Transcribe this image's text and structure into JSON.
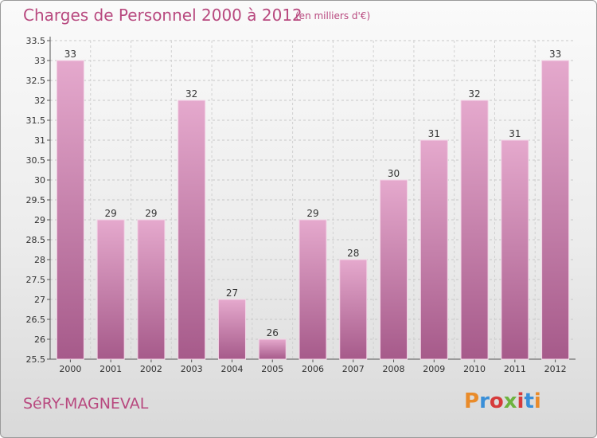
{
  "header": {
    "title": "Charges de Personnel 2000 à 2012",
    "subtitle": "(en milliers d'€)"
  },
  "footer": {
    "commune": "SéRY-MAGNEVAL",
    "logo_text": "Proxiti",
    "logo_colors": [
      "#e98b2a",
      "#3a8fd8",
      "#d63b3b",
      "#6db33f",
      "#d63b3b",
      "#3a8fd8",
      "#e98b2a"
    ]
  },
  "colors": {
    "bar_top": "#e5a9cd",
    "bar_bottom": "#a65a8a",
    "accent": "#b8497f"
  },
  "chart_data": {
    "type": "bar",
    "categories": [
      "2000",
      "2001",
      "2002",
      "2003",
      "2004",
      "2005",
      "2006",
      "2007",
      "2008",
      "2009",
      "2010",
      "2011",
      "2012"
    ],
    "values": [
      33,
      29,
      29,
      32,
      27,
      26,
      29,
      28,
      30,
      31,
      32,
      31,
      33
    ],
    "title": "Charges de Personnel 2000 à 2012",
    "ylim": [
      25.5,
      33.5
    ],
    "yticks": [
      "25.5",
      "26",
      "26.5",
      "27",
      "27.5",
      "28",
      "28.5",
      "29",
      "29.5",
      "30",
      "30.5",
      "31",
      "31.5",
      "32",
      "32.5",
      "33",
      "33.5"
    ],
    "grid": true
  }
}
